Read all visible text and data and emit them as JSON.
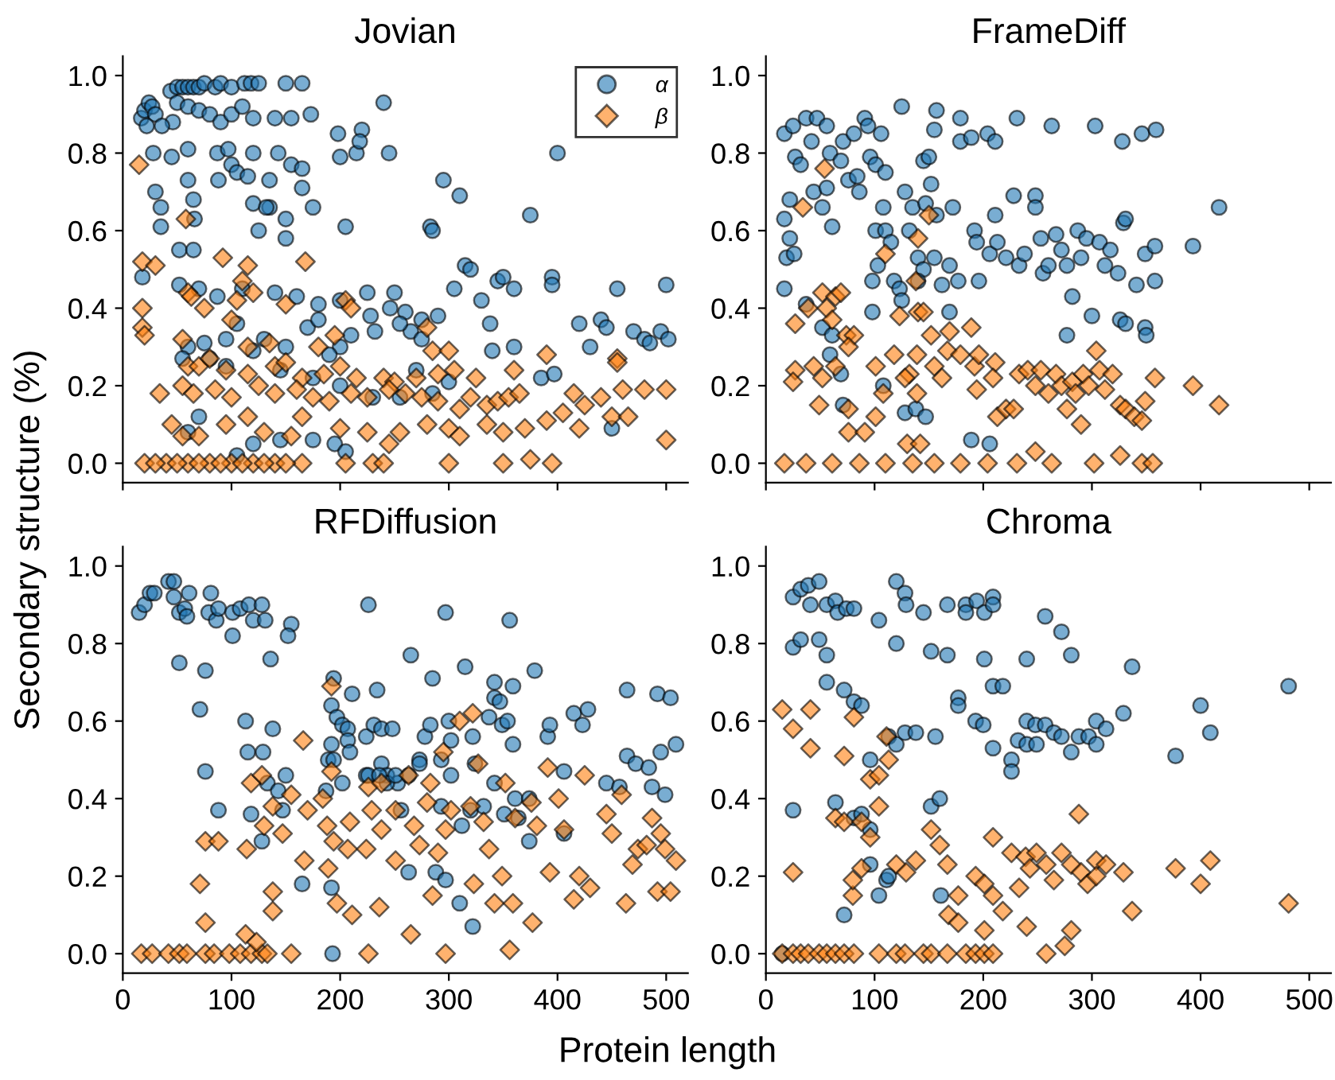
{
  "chart_data": [
    {
      "type": "scatter",
      "title": "Jovian",
      "xlabel": "Protein length",
      "ylabel": "Secondary structure (%)",
      "legend": "top right",
      "tick_labels": "y",
      "xlim": [
        0,
        520
      ],
      "ylim": [
        -0.05,
        1.05
      ],
      "xticks": [
        0,
        100,
        200,
        300,
        400,
        500
      ],
      "yticks": [
        {
          "value": 0,
          "label": "0.0"
        },
        {
          "value": 0.2,
          "label": "0.2"
        },
        {
          "value": 0.4,
          "label": "0.4"
        },
        {
          "value": 0.6,
          "label": "0.6"
        },
        {
          "value": 0.8,
          "label": "0.8"
        },
        {
          "value": 1,
          "label": "1.0"
        }
      ],
      "grid": false,
      "series": [
        {
          "name": "α",
          "color": "#1f77b4",
          "marker": "circle",
          "x": [
            44,
            50,
            55,
            60,
            65,
            70,
            75,
            85,
            90,
            100,
            112,
            118,
            125,
            150,
            165,
            17,
            20,
            24,
            27,
            30,
            22,
            50,
            60,
            70,
            80,
            90,
            100,
            110,
            140,
            120,
            155,
            173,
            240,
            46,
            36,
            28,
            45,
            60,
            87,
            97,
            120,
            143,
            155,
            165,
            200,
            215,
            245,
            400,
            198,
            220,
            218,
            100,
            105,
            115,
            135,
            165,
            88,
            60,
            30,
            35,
            35,
            65,
            66,
            120,
            135,
            150,
            150,
            125,
            132,
            175,
            205,
            295,
            310,
            283,
            285,
            375,
            52,
            65,
            18,
            52,
            70,
            87,
            110,
            140,
            160,
            180,
            200,
            225,
            228,
            260,
            275,
            290,
            305,
            315,
            320,
            330,
            345,
            350,
            360,
            395,
            395,
            420,
            440,
            455,
            470,
            495,
            500,
            430,
            445,
            480,
            502,
            485,
            338,
            340,
            360,
            385,
            397,
            450,
            250,
            246,
            232,
            210,
            200,
            190,
            170,
            150,
            130,
            105,
            95,
            75,
            60,
            80,
            95,
            120,
            145,
            175,
            200,
            230,
            255,
            285,
            300,
            270,
            55,
            70,
            60,
            105,
            120,
            145,
            175,
            195,
            205,
            180,
            265,
            275,
            255
          ],
          "values": [
            0.96,
            0.97,
            0.97,
            0.97,
            0.97,
            0.97,
            0.98,
            0.97,
            0.98,
            0.97,
            0.98,
            0.98,
            0.98,
            0.98,
            0.98,
            0.89,
            0.91,
            0.93,
            0.92,
            0.9,
            0.87,
            0.93,
            0.92,
            0.91,
            0.9,
            0.88,
            0.9,
            0.92,
            0.89,
            0.89,
            0.89,
            0.9,
            0.93,
            0.88,
            0.87,
            0.8,
            0.79,
            0.81,
            0.8,
            0.81,
            0.8,
            0.8,
            0.77,
            0.76,
            0.79,
            0.8,
            0.8,
            0.8,
            0.85,
            0.86,
            0.83,
            0.77,
            0.75,
            0.74,
            0.73,
            0.71,
            0.73,
            0.73,
            0.7,
            0.66,
            0.61,
            0.68,
            0.63,
            0.67,
            0.66,
            0.63,
            0.58,
            0.6,
            0.66,
            0.66,
            0.61,
            0.73,
            0.69,
            0.61,
            0.6,
            0.64,
            0.55,
            0.55,
            0.48,
            0.46,
            0.45,
            0.43,
            0.45,
            0.44,
            0.43,
            0.41,
            0.42,
            0.44,
            0.38,
            0.39,
            0.37,
            0.38,
            0.45,
            0.51,
            0.5,
            0.42,
            0.47,
            0.48,
            0.45,
            0.48,
            0.46,
            0.36,
            0.37,
            0.45,
            0.34,
            0.34,
            0.46,
            0.3,
            0.35,
            0.32,
            0.32,
            0.31,
            0.36,
            0.29,
            0.3,
            0.22,
            0.23,
            0.09,
            0.44,
            0.4,
            0.34,
            0.33,
            0.3,
            0.28,
            0.35,
            0.3,
            0.32,
            0.36,
            0.32,
            0.31,
            0.3,
            0.27,
            0.25,
            0.29,
            0.24,
            0.22,
            0.2,
            0.17,
            0.17,
            0.18,
            0.21,
            0.24,
            0.27,
            0.12,
            0.08,
            0.02,
            0.05,
            0.06,
            0.06,
            0.05,
            0.03,
            0.37,
            0.34,
            0.32,
            0.36
          ]
        },
        {
          "name": "β",
          "color": "#ff7f0e",
          "marker": "diamond",
          "x": [
            15,
            58,
            18,
            30,
            92,
            115,
            168,
            110,
            60,
            63,
            18,
            75,
            105,
            120,
            150,
            205,
            210,
            280,
            18,
            20,
            55,
            100,
            115,
            135,
            180,
            195,
            285,
            300,
            390,
            455,
            455,
            60,
            70,
            80,
            95,
            115,
            140,
            150,
            165,
            185,
            200,
            215,
            240,
            250,
            270,
            290,
            305,
            325,
            360,
            55,
            65,
            85,
            100,
            125,
            140,
            160,
            175,
            190,
            210,
            225,
            245,
            260,
            275,
            290,
            310,
            320,
            335,
            345,
            355,
            365,
            415,
            425,
            440,
            460,
            480,
            500,
            34,
            45,
            55,
            70,
            95,
            115,
            130,
            155,
            165,
            200,
            225,
            245,
            255,
            280,
            300,
            310,
            335,
            350,
            370,
            390,
            405,
            420,
            450,
            465,
            500,
            375,
            395,
            300,
            350,
            230,
            205,
            165,
            140,
            120,
            100,
            80,
            60,
            40,
            20,
            30,
            50,
            70,
            90,
            110,
            130,
            150,
            240
          ],
          "values": [
            0.77,
            0.63,
            0.52,
            0.51,
            0.53,
            0.51,
            0.52,
            0.47,
            0.44,
            0.43,
            0.4,
            0.4,
            0.42,
            0.44,
            0.41,
            0.42,
            0.4,
            0.35,
            0.35,
            0.33,
            0.32,
            0.37,
            0.3,
            0.31,
            0.3,
            0.33,
            0.29,
            0.29,
            0.28,
            0.27,
            0.26,
            0.25,
            0.25,
            0.27,
            0.24,
            0.23,
            0.25,
            0.26,
            0.22,
            0.23,
            0.25,
            0.22,
            0.22,
            0.21,
            0.22,
            0.23,
            0.24,
            0.22,
            0.24,
            0.2,
            0.18,
            0.19,
            0.17,
            0.2,
            0.18,
            0.19,
            0.17,
            0.16,
            0.18,
            0.17,
            0.19,
            0.18,
            0.17,
            0.16,
            0.14,
            0.17,
            0.15,
            0.16,
            0.17,
            0.18,
            0.18,
            0.15,
            0.17,
            0.19,
            0.19,
            0.19,
            0.18,
            0.1,
            0.07,
            0.07,
            0.1,
            0.12,
            0.08,
            0.07,
            0.12,
            0.09,
            0.08,
            0.05,
            0.08,
            0.1,
            0.09,
            0.07,
            0.1,
            0.08,
            0.09,
            0.11,
            0.13,
            0.09,
            0.12,
            0.12,
            0.06,
            0.01,
            0.0,
            0.0,
            0.0,
            0.0,
            0.0,
            0.0,
            0.0,
            0.0,
            0.0,
            0.0,
            0.0,
            0.0,
            0.0,
            0.0,
            0.0,
            0.0,
            0.0,
            0.0,
            0.0,
            0.0,
            0.0
          ]
        }
      ]
    },
    {
      "type": "scatter",
      "title": "FrameDiff",
      "tick_labels": "y",
      "xlim": [
        0,
        520
      ],
      "ylim": [
        -0.05,
        1.05
      ],
      "xticks": [
        0,
        100,
        200,
        300,
        400,
        500
      ],
      "yticks": [
        {
          "value": 0,
          "label": "0.0"
        },
        {
          "value": 0.2,
          "label": "0.2"
        },
        {
          "value": 0.4,
          "label": "0.4"
        },
        {
          "value": 0.6,
          "label": "0.6"
        },
        {
          "value": 0.8,
          "label": "0.8"
        },
        {
          "value": 1,
          "label": "1.0"
        }
      ],
      "grid": false,
      "series": [
        {
          "color": "#1f77b4",
          "marker": "circle",
          "x": [
            17,
            25,
            37,
            47,
            56,
            42,
            59,
            71,
            81,
            91,
            94,
            106,
            125,
            157,
            155,
            179,
            179,
            189,
            204,
            211,
            231,
            263,
            303,
            328,
            346,
            359,
            27,
            32,
            17,
            22,
            22,
            19,
            17,
            26,
            44,
            52,
            56,
            61,
            69,
            76,
            84,
            86,
            96,
            101,
            108,
            110,
            101,
            110,
            115,
            103,
            98,
            118,
            123,
            128,
            135,
            132,
            140,
            145,
            147,
            145,
            150,
            152,
            157,
            155,
            162,
            169,
            172,
            177,
            192,
            194,
            196,
            206,
            211,
            213,
            221,
            228,
            233,
            238,
            248,
            248,
            253,
            255,
            260,
            267,
            272,
            277,
            282,
            277,
            287,
            290,
            295,
            300,
            307,
            312,
            317,
            324,
            329,
            331,
            326,
            331,
            349,
            350,
            349,
            358,
            358,
            341,
            393,
            417,
            37,
            52,
            61,
            69,
            59,
            71,
            108,
            128,
            138,
            147,
            189,
            206,
            125,
            140,
            98,
            169
          ],
          "values": [
            0.85,
            0.87,
            0.89,
            0.89,
            0.87,
            0.83,
            0.8,
            0.83,
            0.85,
            0.89,
            0.87,
            0.85,
            0.92,
            0.91,
            0.86,
            0.89,
            0.83,
            0.84,
            0.85,
            0.83,
            0.89,
            0.87,
            0.87,
            0.83,
            0.85,
            0.86,
            0.79,
            0.77,
            0.63,
            0.68,
            0.58,
            0.53,
            0.45,
            0.54,
            0.7,
            0.66,
            0.71,
            0.61,
            0.78,
            0.73,
            0.74,
            0.7,
            0.79,
            0.77,
            0.66,
            0.75,
            0.6,
            0.6,
            0.57,
            0.51,
            0.47,
            0.47,
            0.45,
            0.7,
            0.66,
            0.6,
            0.53,
            0.5,
            0.67,
            0.78,
            0.79,
            0.72,
            0.64,
            0.53,
            0.46,
            0.51,
            0.66,
            0.47,
            0.6,
            0.57,
            0.47,
            0.54,
            0.64,
            0.57,
            0.53,
            0.69,
            0.51,
            0.54,
            0.69,
            0.66,
            0.58,
            0.49,
            0.51,
            0.59,
            0.55,
            0.51,
            0.43,
            0.33,
            0.6,
            0.53,
            0.58,
            0.38,
            0.57,
            0.51,
            0.55,
            0.49,
            0.62,
            0.63,
            0.37,
            0.36,
            0.35,
            0.33,
            0.54,
            0.56,
            0.47,
            0.46,
            0.56,
            0.66,
            0.41,
            0.35,
            0.33,
            0.23,
            0.28,
            0.15,
            0.2,
            0.13,
            0.14,
            0.12,
            0.06,
            0.05,
            0.42,
            0.47,
            0.39,
            0.39
          ]
        },
        {
          "color": "#ff7f0e",
          "marker": "diamond",
          "x": [
            54,
            34,
            150,
            140,
            110,
            138,
            27,
            27,
            25,
            39,
            52,
            56,
            64,
            61,
            69,
            74,
            81,
            76,
            44,
            52,
            64,
            49,
            76,
            76,
            91,
            101,
            101,
            108,
            118,
            123,
            132,
            128,
            139,
            139,
            140,
            145,
            130,
            142,
            152,
            155,
            162,
            167,
            169,
            179,
            189,
            192,
            194,
            196,
            211,
            209,
            213,
            221,
            228,
            233,
            241,
            248,
            253,
            260,
            267,
            272,
            277,
            282,
            285,
            292,
            297,
            304,
            307,
            312,
            319,
            326,
            331,
            339,
            346,
            349,
            358,
            393,
            417,
            290,
            302,
            326,
            248,
            263,
            231,
            204,
            179,
            155,
            135,
            110,
            86,
            61,
            37,
            17,
            346,
            356
          ],
          "values": [
            0.76,
            0.66,
            0.64,
            0.58,
            0.54,
            0.47,
            0.36,
            0.24,
            0.21,
            0.4,
            0.44,
            0.4,
            0.43,
            0.37,
            0.44,
            0.33,
            0.33,
            0.3,
            0.25,
            0.22,
            0.25,
            0.15,
            0.14,
            0.08,
            0.08,
            0.25,
            0.12,
            0.18,
            0.28,
            0.38,
            0.23,
            0.22,
            0.28,
            0.18,
            0.39,
            0.39,
            0.05,
            0.05,
            0.33,
            0.25,
            0.22,
            0.29,
            0.34,
            0.28,
            0.35,
            0.25,
            0.19,
            0.28,
            0.26,
            0.22,
            0.12,
            0.14,
            0.14,
            0.23,
            0.24,
            0.2,
            0.24,
            0.18,
            0.23,
            0.2,
            0.14,
            0.21,
            0.18,
            0.23,
            0.2,
            0.29,
            0.24,
            0.19,
            0.23,
            0.15,
            0.14,
            0.12,
            0.11,
            0.16,
            0.22,
            0.2,
            0.15,
            0.1,
            0.0,
            0.02,
            0.03,
            0.0,
            0.0,
            0.0,
            0.0,
            0.0,
            0.0,
            0.0,
            0.0,
            0.0,
            0.0,
            0.0,
            0.0,
            0.0
          ]
        }
      ]
    },
    {
      "type": "scatter",
      "title": "RFDiffusion",
      "xlim": [
        0,
        520
      ],
      "ylim": [
        -0.05,
        1.05
      ],
      "xticks": [
        0,
        100,
        200,
        300,
        400,
        500
      ],
      "yticks": [
        {
          "value": 0,
          "label": "0.0"
        },
        {
          "value": 0.2,
          "label": "0.2"
        },
        {
          "value": 0.4,
          "label": "0.4"
        },
        {
          "value": 0.6,
          "label": "0.6"
        },
        {
          "value": 0.8,
          "label": "0.8"
        },
        {
          "value": 1,
          "label": "1.0"
        }
      ],
      "grid": false,
      "series": [
        {
          "color": "#1f77b4",
          "marker": "circle",
          "x": [
            15,
            20,
            25,
            29,
            42,
            47,
            47,
            52,
            57,
            61,
            59,
            81,
            79,
            86,
            88,
            101,
            101,
            108,
            116,
            120,
            128,
            131,
            155,
            152,
            226,
            297,
            356,
            52,
            76,
            136,
            71,
            113,
            138,
            76,
            88,
            115,
            129,
            118,
            133,
            143,
            150,
            147,
            128,
            165,
            194,
            211,
            234,
            265,
            285,
            315,
            342,
            359,
            379,
            192,
            197,
            202,
            207,
            207,
            192,
            189,
            194,
            209,
            202,
            187,
            224,
            231,
            238,
            248,
            224,
            238,
            243,
            253,
            263,
            273,
            278,
            283,
            293,
            300,
            302,
            302,
            322,
            324,
            337,
            342,
            347,
            349,
            354,
            359,
            342,
            361,
            364,
            374,
            391,
            393,
            406,
            415,
            423,
            428,
            445,
            457,
            464,
            464,
            472,
            484,
            487,
            492,
            504,
            495,
            509,
            499,
            243,
            256,
            273,
            293,
            312,
            320,
            332,
            351,
            374,
            406,
            263,
            288,
            297,
            310,
            322,
            192,
            193,
            226,
            236,
            251
          ],
          "values": [
            0.88,
            0.9,
            0.93,
            0.93,
            0.96,
            0.96,
            0.92,
            0.88,
            0.89,
            0.93,
            0.87,
            0.93,
            0.88,
            0.86,
            0.89,
            0.88,
            0.82,
            0.89,
            0.9,
            0.86,
            0.9,
            0.86,
            0.85,
            0.82,
            0.9,
            0.88,
            0.86,
            0.75,
            0.73,
            0.76,
            0.63,
            0.6,
            0.58,
            0.47,
            0.37,
            0.52,
            0.52,
            0.36,
            0.44,
            0.42,
            0.46,
            0.37,
            0.29,
            0.18,
            0.71,
            0.67,
            0.68,
            0.77,
            0.71,
            0.74,
            0.7,
            0.69,
            0.73,
            0.64,
            0.61,
            0.59,
            0.58,
            0.55,
            0.54,
            0.5,
            0.5,
            0.52,
            0.44,
            0.42,
            0.56,
            0.59,
            0.58,
            0.58,
            0.46,
            0.49,
            0.46,
            0.44,
            0.46,
            0.5,
            0.56,
            0.59,
            0.5,
            0.6,
            0.55,
            0.46,
            0.56,
            0.49,
            0.61,
            0.66,
            0.65,
            0.59,
            0.6,
            0.54,
            0.44,
            0.4,
            0.35,
            0.29,
            0.56,
            0.59,
            0.47,
            0.62,
            0.59,
            0.63,
            0.44,
            0.43,
            0.68,
            0.51,
            0.49,
            0.48,
            0.43,
            0.67,
            0.66,
            0.52,
            0.54,
            0.41,
            0.44,
            0.37,
            0.49,
            0.38,
            0.33,
            0.37,
            0.38,
            0.36,
            0.4,
            0.31,
            0.21,
            0.21,
            0.19,
            0.13,
            0.07,
            0.17,
            0.0,
            0.46,
            0.46,
            0.46
          ]
        },
        {
          "color": "#ff7f0e",
          "marker": "diamond",
          "x": [
            17,
            27,
            42,
            52,
            59,
            76,
            84,
            98,
            108,
            118,
            128,
            133,
            155,
            226,
            297,
            356,
            71,
            76,
            113,
            123,
            138,
            138,
            76,
            88,
            114,
            118,
            128,
            130,
            138,
            147,
            155,
            166,
            167,
            170,
            192,
            184,
            188,
            192,
            194,
            189,
            197,
            207,
            209,
            211,
            226,
            229,
            224,
            238,
            236,
            238,
            251,
            251,
            263,
            265,
            268,
            273,
            280,
            283,
            285,
            290,
            295,
            297,
            302,
            310,
            320,
            322,
            323,
            327,
            332,
            337,
            342,
            349,
            352,
            359,
            361,
            376,
            377,
            381,
            391,
            393,
            401,
            406,
            415,
            420,
            425,
            430,
            445,
            450,
            459,
            463,
            469,
            474,
            482,
            487,
            492,
            495,
            499,
            504,
            509
          ],
          "values": [
            0.0,
            0.0,
            0.0,
            0.0,
            0.0,
            0.0,
            0.0,
            0.0,
            0.0,
            0.0,
            0.0,
            0.0,
            0.0,
            0.0,
            0.0,
            0.01,
            0.18,
            0.08,
            0.05,
            0.03,
            0.16,
            0.11,
            0.29,
            0.29,
            0.27,
            0.44,
            0.46,
            0.33,
            0.38,
            0.31,
            0.41,
            0.55,
            0.24,
            0.37,
            0.69,
            0.4,
            0.33,
            0.47,
            0.29,
            0.22,
            0.13,
            0.27,
            0.34,
            0.1,
            0.43,
            0.37,
            0.27,
            0.32,
            0.12,
            0.44,
            0.37,
            0.24,
            0.46,
            0.05,
            0.33,
            0.28,
            0.39,
            0.44,
            0.15,
            0.26,
            0.52,
            0.32,
            0.37,
            0.6,
            0.38,
            0.62,
            0.18,
            0.49,
            0.34,
            0.27,
            0.13,
            0.2,
            0.44,
            0.13,
            0.35,
            0.39,
            0.08,
            0.33,
            0.48,
            0.21,
            0.4,
            0.32,
            0.14,
            0.2,
            0.46,
            0.17,
            0.36,
            0.31,
            0.41,
            0.13,
            0.23,
            0.27,
            0.28,
            0.35,
            0.16,
            0.31,
            0.27,
            0.16,
            0.24
          ]
        }
      ]
    },
    {
      "type": "scatter",
      "title": "Chroma",
      "xlim": [
        0,
        520
      ],
      "ylim": [
        -0.05,
        1.05
      ],
      "xticks": [
        0,
        100,
        200,
        300,
        400,
        500
      ],
      "yticks": [
        {
          "value": 0,
          "label": "0.0"
        },
        {
          "value": 0.2,
          "label": "0.2"
        },
        {
          "value": 0.4,
          "label": "0.4"
        },
        {
          "value": 0.6,
          "label": "0.6"
        },
        {
          "value": 0.8,
          "label": "0.8"
        },
        {
          "value": 1,
          "label": "1.0"
        }
      ],
      "grid": false,
      "series": [
        {
          "color": "#1f77b4",
          "marker": "circle",
          "x": [
            15,
            25,
            32,
            39,
            49,
            41,
            56,
            64,
            66,
            74,
            81,
            25,
            32,
            49,
            56,
            56,
            72,
            81,
            88,
            25,
            64,
            81,
            88,
            96,
            96,
            96,
            72,
            104,
            104,
            111,
            113,
            113,
            120,
            120,
            120,
            128,
            129,
            128,
            138,
            145,
            152,
            152,
            160,
            161,
            156,
            167,
            167,
            177,
            177,
            184,
            184,
            194,
            201,
            201,
            193,
            200,
            209,
            209,
            209,
            209,
            218,
            226,
            226,
            232,
            240,
            240,
            240,
            248,
            249,
            257,
            257,
            265,
            272,
            272,
            281,
            281,
            288,
            297,
            304,
            304,
            313,
            329,
            337,
            377,
            400,
            409,
            481
          ],
          "values": [
            0.0,
            0.92,
            0.94,
            0.95,
            0.96,
            0.9,
            0.9,
            0.91,
            0.88,
            0.89,
            0.89,
            0.79,
            0.81,
            0.81,
            0.77,
            0.7,
            0.68,
            0.65,
            0.64,
            0.37,
            0.39,
            0.35,
            0.36,
            0.5,
            0.32,
            0.23,
            0.1,
            0.86,
            0.15,
            0.19,
            0.2,
            0.56,
            0.96,
            0.54,
            0.8,
            0.93,
            0.9,
            0.57,
            0.57,
            0.88,
            0.78,
            0.38,
            0.4,
            0.15,
            0.56,
            0.9,
            0.77,
            0.66,
            0.64,
            0.9,
            0.88,
            0.91,
            0.88,
            0.76,
            0.6,
            0.59,
            0.92,
            0.9,
            0.53,
            0.69,
            0.69,
            0.5,
            0.47,
            0.55,
            0.76,
            0.6,
            0.54,
            0.59,
            0.54,
            0.87,
            0.59,
            0.57,
            0.56,
            0.83,
            0.77,
            0.52,
            0.56,
            0.56,
            0.6,
            0.54,
            0.58,
            0.62,
            0.74,
            0.51,
            0.64,
            0.57,
            0.69
          ]
        },
        {
          "color": "#ff7f0e",
          "marker": "diamond",
          "x": [
            15,
            25,
            41,
            41,
            25,
            72,
            81,
            64,
            72,
            88,
            96,
            104,
            104,
            96,
            80,
            80,
            88,
            111,
            113,
            120,
            129,
            138,
            152,
            160,
            167,
            168,
            177,
            177,
            193,
            201,
            201,
            209,
            209,
            218,
            226,
            233,
            240,
            239,
            243,
            249,
            258,
            258,
            265,
            272,
            281,
            275,
            281,
            288,
            290,
            296,
            304,
            304,
            313,
            329,
            337,
            377,
            400,
            409,
            481,
            15,
            25,
            32,
            39,
            49,
            56,
            64,
            72,
            81,
            104,
            120,
            128,
            145,
            152,
            167,
            184,
            193,
            201,
            209
          ],
          "values": [
            0.63,
            0.58,
            0.63,
            0.53,
            0.21,
            0.51,
            0.61,
            0.35,
            0.34,
            0.34,
            0.45,
            0.46,
            0.38,
            0.3,
            0.15,
            0.19,
            0.22,
            0.56,
            0.5,
            0.23,
            0.21,
            0.24,
            0.32,
            0.28,
            0.23,
            0.1,
            0.08,
            0.15,
            0.2,
            0.18,
            0.06,
            0.3,
            0.15,
            0.11,
            0.26,
            0.17,
            0.07,
            0.25,
            0.22,
            0.26,
            0.0,
            0.23,
            0.19,
            0.26,
            0.23,
            0.02,
            0.06,
            0.36,
            0.21,
            0.18,
            0.24,
            0.2,
            0.23,
            0.21,
            0.11,
            0.22,
            0.18,
            0.24,
            0.13,
            0.0,
            0.0,
            0.0,
            0.0,
            0.0,
            0.0,
            0.0,
            0.0,
            0.0,
            0.0,
            0.0,
            0.0,
            0.0,
            0.0,
            0.0,
            0.0,
            0.0,
            0.0,
            0.0
          ]
        }
      ]
    }
  ]
}
